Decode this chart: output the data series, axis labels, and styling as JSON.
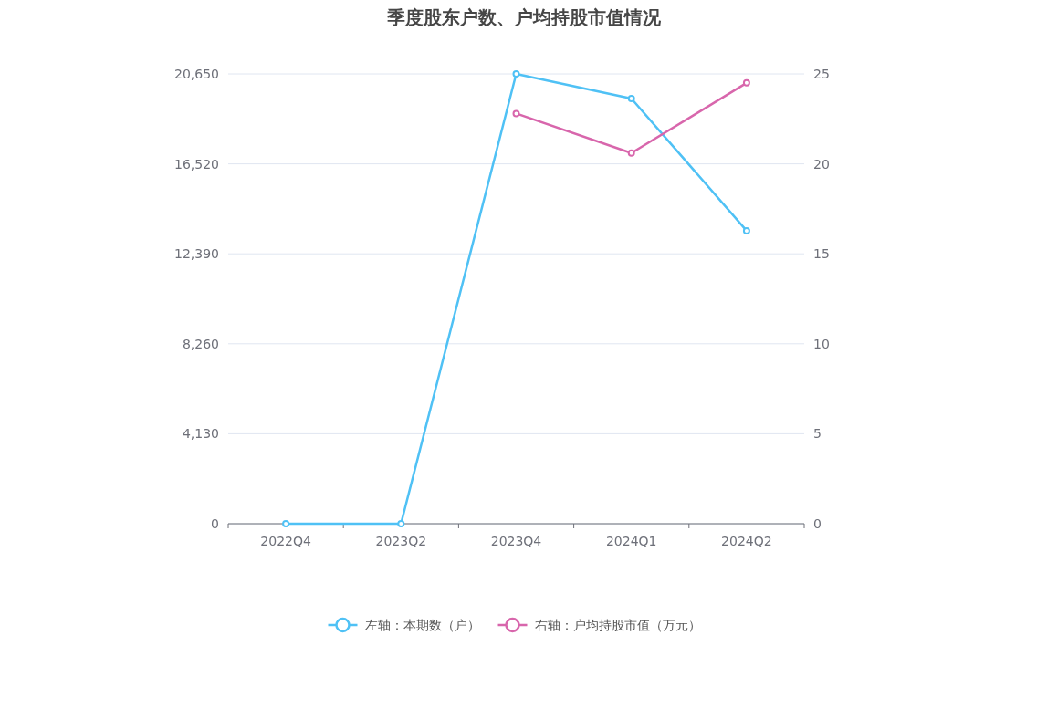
{
  "chart_data": {
    "type": "line",
    "title": "季度股东户数、户均持股市值情况",
    "categories": [
      "2022Q4",
      "2023Q2",
      "2023Q4",
      "2024Q1",
      "2024Q2"
    ],
    "series": [
      {
        "name": "左轴：本期数（户）",
        "color": "#4fc1f5",
        "values": [
          0,
          0,
          20650,
          19520,
          13450
        ]
      },
      {
        "name": "右轴：户均持股市值（万元）",
        "color": "#d866ac",
        "axis": "y2",
        "values": [
          null,
          null,
          22.8,
          20.6,
          24.5
        ]
      }
    ],
    "ylim": [
      0,
      20650
    ],
    "yticks": [
      0,
      {
        "value": 4130,
        "label": "4,130"
      },
      {
        "value": 8260,
        "label": "8,260"
      },
      {
        "value": 12390,
        "label": "12,390"
      },
      {
        "value": 16520,
        "label": "16,520"
      },
      {
        "value": 20650,
        "label": "20,650"
      }
    ],
    "y2lim": [
      0,
      25
    ],
    "y2ticks": [
      0,
      5,
      10,
      15,
      20,
      25
    ],
    "grid": "y",
    "legend": "bottom",
    "marker": "circle",
    "line_style": "solid"
  }
}
